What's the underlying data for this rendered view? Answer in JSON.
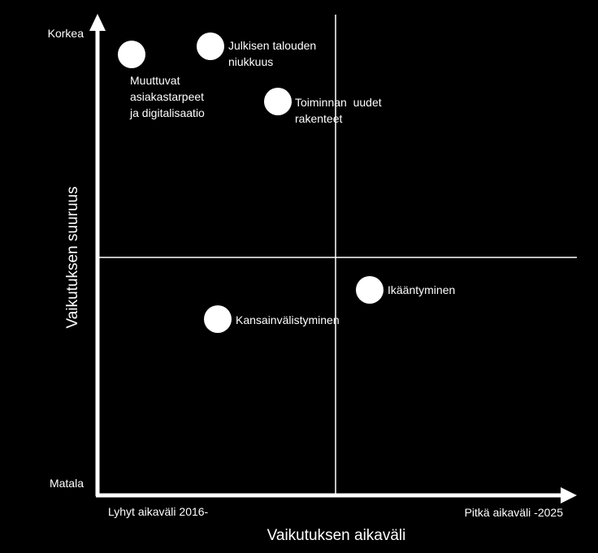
{
  "colors": {
    "background": "#000000",
    "foreground": "#ffffff"
  },
  "axes": {
    "x_label": "Vaikutuksen aikaväli",
    "y_label": "Vaikutuksen suuruus",
    "x_low": "Lyhyt aikaväli 2016-",
    "x_high": "Pitkä aikaväli  -2025",
    "y_high": "Korkea",
    "y_low": "Matala"
  },
  "items": [
    {
      "key": "muuttuvat",
      "lines": [
        "Muuttuvat",
        "asiakastarpeet",
        "ja digitalisaatio"
      ]
    },
    {
      "key": "julkisen",
      "lines": [
        "Julkisen talouden",
        "niukkuus"
      ]
    },
    {
      "key": "toiminnan",
      "lines": [
        "Toiminnan  uudet",
        "rakenteet"
      ]
    },
    {
      "key": "ikaantyminen",
      "lines": [
        "Ikääntyminen"
      ]
    },
    {
      "key": "kansainvalistyminen",
      "lines": [
        "Kansainvälistyminen"
      ]
    }
  ]
}
